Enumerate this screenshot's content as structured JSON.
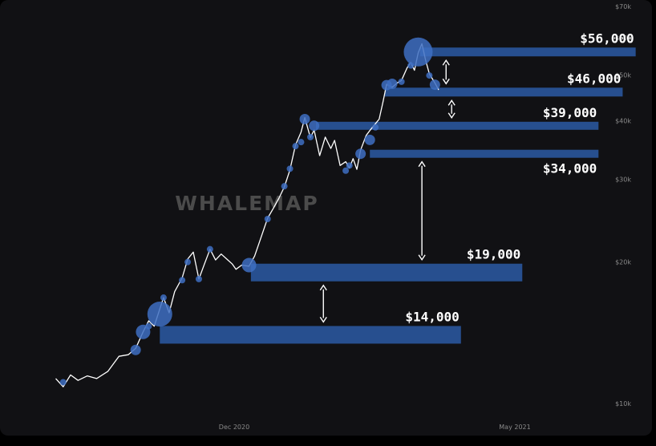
{
  "chart_data": {
    "type": "line",
    "watermark": "WHALEMAP",
    "y_axis": {
      "scale": "log",
      "ticks": [
        {
          "value": 70000,
          "label": "$70k"
        },
        {
          "value": 60000,
          "label": "$60k"
        },
        {
          "value": 50000,
          "label": "$50k"
        },
        {
          "value": 40000,
          "label": "$40k"
        },
        {
          "value": 30000,
          "label": "$30k"
        },
        {
          "value": 20000,
          "label": "$20k"
        },
        {
          "value": 10000,
          "label": "$10k"
        }
      ]
    },
    "x_axis": {
      "ticks": [
        {
          "date": "2020-12-01",
          "label": "Dec 2020"
        },
        {
          "date": "2021-05-01",
          "label": "May 2021"
        }
      ]
    },
    "series": [
      {
        "color": "#ffffff",
        "points": [
          [
            "2020-08-27",
            11300
          ],
          [
            "2020-08-31",
            10850
          ],
          [
            "2020-09-04",
            11500
          ],
          [
            "2020-09-08",
            11200
          ],
          [
            "2020-09-13",
            11450
          ],
          [
            "2020-09-18",
            11300
          ],
          [
            "2020-09-24",
            11700
          ],
          [
            "2020-09-30",
            12600
          ],
          [
            "2020-10-05",
            12700
          ],
          [
            "2020-10-09",
            13100
          ],
          [
            "2020-10-13",
            14200
          ],
          [
            "2020-10-16",
            15000
          ],
          [
            "2020-10-19",
            14600
          ],
          [
            "2020-10-22",
            15900
          ],
          [
            "2020-10-24",
            16800
          ],
          [
            "2020-10-27",
            15600
          ],
          [
            "2020-10-30",
            17300
          ],
          [
            "2020-11-03",
            18500
          ],
          [
            "2020-11-06",
            20300
          ],
          [
            "2020-11-09",
            21000
          ],
          [
            "2020-11-12",
            18400
          ],
          [
            "2020-11-15",
            19800
          ],
          [
            "2020-11-18",
            21300
          ],
          [
            "2020-11-21",
            20200
          ],
          [
            "2020-11-24",
            20800
          ],
          [
            "2020-11-27",
            20300
          ],
          [
            "2020-11-30",
            19800
          ],
          [
            "2020-12-02",
            19300
          ],
          [
            "2020-12-05",
            19700
          ],
          [
            "2020-12-09",
            19600
          ],
          [
            "2020-12-12",
            20600
          ],
          [
            "2020-12-16",
            22900
          ],
          [
            "2020-12-19",
            24800
          ],
          [
            "2020-12-22",
            26000
          ],
          [
            "2020-12-25",
            27300
          ],
          [
            "2020-12-28",
            28900
          ],
          [
            "2020-12-31",
            31400
          ],
          [
            "2021-01-03",
            35500
          ],
          [
            "2021-01-06",
            37800
          ],
          [
            "2021-01-08",
            40600
          ],
          [
            "2021-01-11",
            36800
          ],
          [
            "2021-01-13",
            38200
          ],
          [
            "2021-01-16",
            33700
          ],
          [
            "2021-01-19",
            36900
          ],
          [
            "2021-01-22",
            34900
          ],
          [
            "2021-01-24",
            36300
          ],
          [
            "2021-01-27",
            32100
          ],
          [
            "2021-01-30",
            32700
          ],
          [
            "2021-02-01",
            31700
          ],
          [
            "2021-02-03",
            33200
          ],
          [
            "2021-02-05",
            31500
          ],
          [
            "2021-02-07",
            34600
          ],
          [
            "2021-02-10",
            37200
          ],
          [
            "2021-02-12",
            38100
          ],
          [
            "2021-02-15",
            39400
          ],
          [
            "2021-02-17",
            40300
          ],
          [
            "2021-02-19",
            43700
          ],
          [
            "2021-02-21",
            47800
          ],
          [
            "2021-02-24",
            47100
          ],
          [
            "2021-02-27",
            48200
          ],
          [
            "2021-03-01",
            48700
          ],
          [
            "2021-03-04",
            51800
          ],
          [
            "2021-03-06",
            53200
          ],
          [
            "2021-03-08",
            51200
          ],
          [
            "2021-03-10",
            55800
          ],
          [
            "2021-03-12",
            58300
          ],
          [
            "2021-03-14",
            53800
          ],
          [
            "2021-03-16",
            50300
          ],
          [
            "2021-03-19",
            48100
          ],
          [
            "2021-03-21",
            46500
          ]
        ]
      }
    ],
    "volume_markers": [
      {
        "date": "2020-08-31",
        "price": 11100,
        "size": "xs"
      },
      {
        "date": "2020-10-09",
        "price": 13000,
        "size": "s"
      },
      {
        "date": "2020-10-13",
        "price": 14200,
        "size": "m"
      },
      {
        "date": "2020-10-16",
        "price": 14600,
        "size": "xs"
      },
      {
        "date": "2020-10-22",
        "price": 15500,
        "size": "l"
      },
      {
        "date": "2020-10-24",
        "price": 16800,
        "size": "xs"
      },
      {
        "date": "2020-11-03",
        "price": 18300,
        "size": "xs"
      },
      {
        "date": "2020-11-06",
        "price": 20000,
        "size": "xs"
      },
      {
        "date": "2020-11-12",
        "price": 18400,
        "size": "xs"
      },
      {
        "date": "2020-11-18",
        "price": 21300,
        "size": "xs"
      },
      {
        "date": "2020-12-09",
        "price": 19700,
        "size": "m"
      },
      {
        "date": "2020-12-19",
        "price": 24700,
        "size": "xs"
      },
      {
        "date": "2020-12-28",
        "price": 29000,
        "size": "xs"
      },
      {
        "date": "2020-12-31",
        "price": 31600,
        "size": "xs"
      },
      {
        "date": "2021-01-03",
        "price": 35300,
        "size": "xs"
      },
      {
        "date": "2021-01-06",
        "price": 36000,
        "size": "xs"
      },
      {
        "date": "2021-01-08",
        "price": 40300,
        "size": "s"
      },
      {
        "date": "2021-01-11",
        "price": 36900,
        "size": "xs"
      },
      {
        "date": "2021-01-13",
        "price": 39000,
        "size": "s"
      },
      {
        "date": "2021-01-30",
        "price": 31300,
        "size": "xs"
      },
      {
        "date": "2021-02-01",
        "price": 32100,
        "size": "xs"
      },
      {
        "date": "2021-02-07",
        "price": 34000,
        "size": "s"
      },
      {
        "date": "2021-02-12",
        "price": 36400,
        "size": "s"
      },
      {
        "date": "2021-02-15",
        "price": 38700,
        "size": "xs"
      },
      {
        "date": "2021-02-21",
        "price": 47600,
        "size": "s"
      },
      {
        "date": "2021-02-24",
        "price": 47900,
        "size": "s"
      },
      {
        "date": "2021-03-01",
        "price": 48400,
        "size": "xs"
      },
      {
        "date": "2021-03-06",
        "price": 52400,
        "size": "xs"
      },
      {
        "date": "2021-03-10",
        "price": 56000,
        "size": "xl"
      },
      {
        "date": "2021-03-16",
        "price": 49900,
        "size": "xs"
      },
      {
        "date": "2021-03-19",
        "price": 47700,
        "size": "s"
      }
    ],
    "levels": [
      {
        "label": "$56,000",
        "price": 56000,
        "start": "2021-03-11",
        "end": "2021-07-05",
        "label_side": "above"
      },
      {
        "label": "$46,000",
        "price": 46000,
        "start": "2021-02-20",
        "end": "2021-06-28",
        "label_side": "above"
      },
      {
        "label": "$39,000",
        "price": 39000,
        "start": "2021-01-14",
        "end": "2021-06-15",
        "label_side": "above"
      },
      {
        "label": "$34,000",
        "price": 34000,
        "start": "2021-02-12",
        "end": "2021-06-15",
        "label_side": "below"
      },
      {
        "label": "$19,000",
        "price": 19000,
        "start": "2020-12-10",
        "end": "2021-05-05",
        "label_side": "above"
      },
      {
        "label": "$14,000",
        "price": 14000,
        "start": "2020-10-22",
        "end": "2021-04-02",
        "label_side": "above"
      }
    ],
    "gaps": [
      {
        "from": 56000,
        "to": 46000,
        "date": "2021-03-25"
      },
      {
        "from": 46000,
        "to": 39000,
        "date": "2021-03-28"
      },
      {
        "from": 34000,
        "to": 19000,
        "date": "2021-03-12"
      },
      {
        "from": 19000,
        "to": 14000,
        "date": "2021-01-18"
      }
    ],
    "colors": {
      "background": "#111114",
      "frame": "#000000",
      "level_bar": "#274f8f",
      "marker": "#3e6fc2",
      "line": "#ffffff",
      "label": "#ffffff",
      "axis_text": "#8a8a8a",
      "watermark": "#4b4b4b"
    }
  }
}
